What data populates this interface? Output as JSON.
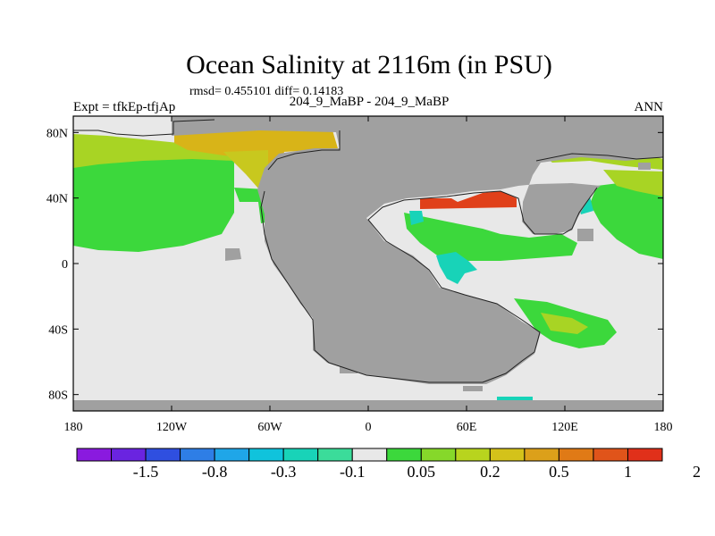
{
  "title": "Ocean Salinity at 2116m (in PSU)",
  "stats": "rmsd= 0.455101 diff= 0.14183",
  "left_string": "Expt = tfkEp-tfjAp",
  "center_string": "204_9_MaBP - 204_9_MaBP",
  "right_string": "ANN",
  "lon_labels": [
    "180",
    "120W",
    "60W",
    "0",
    "60E",
    "120E",
    "180"
  ],
  "lat_labels": [
    "80N",
    "40N",
    "0",
    "40S",
    "80S"
  ],
  "colorbar": {
    "colors": [
      "#8a1adf",
      "#6a24e0",
      "#2f4fe0",
      "#2e7ee6",
      "#1fa6e8",
      "#10c3dc",
      "#18d3b8",
      "#3bdc9a",
      "#e8e8e8",
      "#3cd83c",
      "#86d82a",
      "#b8d41e",
      "#d4c21a",
      "#dca01a",
      "#e07a16",
      "#e0541a",
      "#e0301a"
    ],
    "labels": [
      "-1.5",
      "-0.8",
      "-0.3",
      "-0.1",
      "0.05",
      "0.2",
      "0.5",
      "1",
      "2"
    ]
  },
  "colors": {
    "land": "#a0a0a0",
    "ocean_neutral": "#e8e8e8",
    "green": "#3cd83c",
    "yellow_green": "#a8d424",
    "yellow": "#c8c81e",
    "gold": "#d8b418",
    "orange_red": "#e0401a",
    "cyan": "#18d3b8"
  }
}
